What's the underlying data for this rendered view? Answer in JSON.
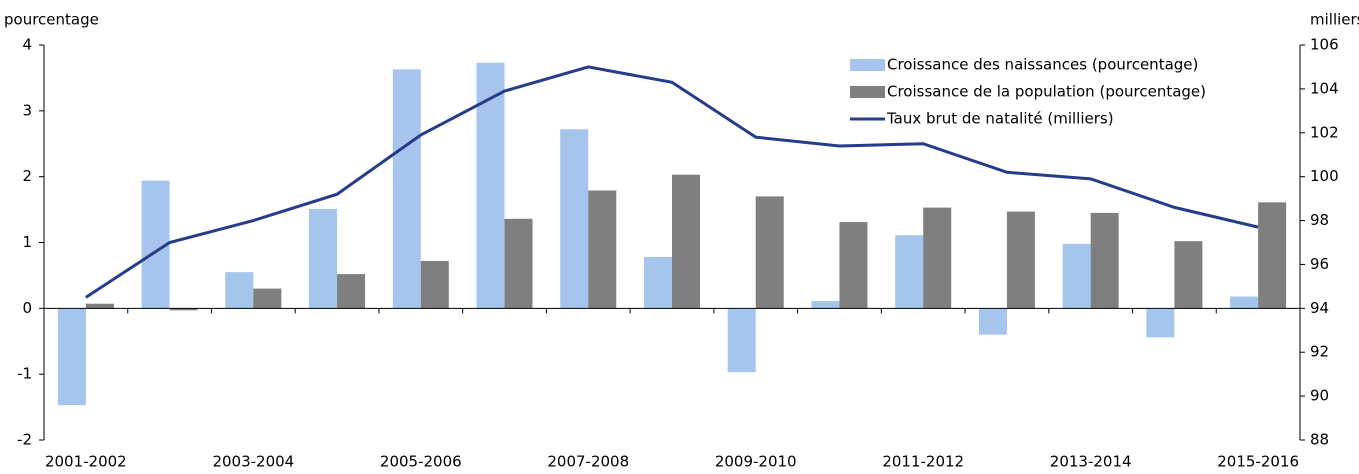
{
  "chart_data": {
    "type": "bar",
    "y_label": "pourcentage",
    "y2_label": "milliers",
    "categories": [
      "2001-2002",
      null,
      "2003-2004",
      null,
      "2005-2006",
      null,
      "2007-2008",
      null,
      "2009-2010",
      null,
      "2011-2012",
      null,
      "2013-2014",
      null,
      "2015-2016"
    ],
    "series": [
      {
        "name": "Croissance des naissances (pourcentage)",
        "color": "#a6c5ec",
        "type": "bar",
        "values": [
          -1.47,
          1.94,
          0.55,
          1.51,
          3.63,
          3.73,
          2.72,
          0.78,
          -0.97,
          0.11,
          1.11,
          -0.4,
          0.98,
          -0.44,
          0.18
        ]
      },
      {
        "name": "Croissance de la population (pourcentage)",
        "color": "#7f7f7f",
        "type": "bar",
        "values": [
          0.07,
          -0.03,
          0.3,
          0.52,
          0.72,
          1.36,
          1.79,
          2.03,
          1.7,
          1.31,
          1.53,
          1.47,
          1.45,
          1.02,
          1.61
        ]
      },
      {
        "name": "Taux brut de natalité (milliers)",
        "color": "#253c8c",
        "type": "line",
        "axis": "y2",
        "values": [
          94.5,
          97.0,
          98.0,
          99.2,
          101.9,
          103.9,
          105.0,
          104.3,
          101.8,
          101.4,
          101.5,
          100.2,
          99.9,
          98.6,
          97.7
        ]
      }
    ],
    "ylim": [
      -2,
      4
    ],
    "yticks": [
      -2,
      -1,
      0,
      1,
      2,
      3,
      4
    ],
    "y2lim": [
      88,
      106
    ],
    "y2ticks": [
      88,
      90,
      92,
      94,
      96,
      98,
      100,
      102,
      104,
      106
    ],
    "legend": "upper right"
  }
}
